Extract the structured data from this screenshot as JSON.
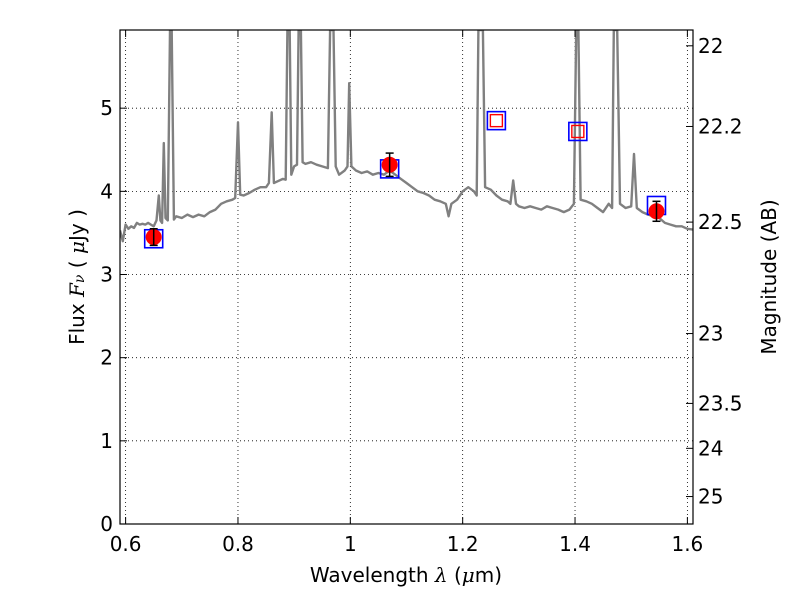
{
  "chart_data": {
    "type": "line",
    "xlabel_text": "Wavelength",
    "xlabel_symbol": "λ",
    "xlabel_unit_open": " (",
    "xlabel_unit_mu": "μ",
    "xlabel_unit_rest": "m)",
    "ylabel_text": "Flux",
    "ylabel_symbol": "F",
    "ylabel_subscript": "ν",
    "ylabel_unit_open": " ( ",
    "ylabel_unit_mu": "μ",
    "ylabel_unit_rest": "Jy )",
    "y2label": "Magnitude (AB)",
    "xlim": [
      0.59,
      1.61
    ],
    "ylim": [
      0,
      5.94
    ],
    "grid": true,
    "x_ticks": [
      0.6,
      0.8,
      1.0,
      1.2,
      1.4,
      1.6
    ],
    "x_tick_labels": [
      "0.6",
      "0.8",
      "1",
      "1.2",
      "1.4",
      "1.6"
    ],
    "y_ticks": [
      0,
      1,
      2,
      3,
      4,
      5
    ],
    "y_tick_labels": [
      "0",
      "1",
      "2",
      "3",
      "4",
      "5"
    ],
    "y2_ticks": [
      {
        "label": "22",
        "flux": 5.75
      },
      {
        "label": "22.2",
        "flux": 4.78
      },
      {
        "label": "22.5",
        "flux": 3.63
      },
      {
        "label": "23",
        "flux": 2.29
      },
      {
        "label": "23.5",
        "flux": 1.45
      },
      {
        "label": "24",
        "flux": 0.91
      },
      {
        "label": "25",
        "flux": 0.33
      }
    ],
    "series": [
      {
        "style": "model",
        "color": "#808080",
        "points": [
          [
            0.59,
            3.53
          ],
          [
            0.595,
            3.4
          ],
          [
            0.6,
            3.6
          ],
          [
            0.605,
            3.55
          ],
          [
            0.61,
            3.58
          ],
          [
            0.615,
            3.56
          ],
          [
            0.62,
            3.62
          ],
          [
            0.625,
            3.6
          ],
          [
            0.63,
            3.61
          ],
          [
            0.635,
            3.6
          ],
          [
            0.64,
            3.62
          ],
          [
            0.645,
            3.6
          ],
          [
            0.65,
            3.58
          ],
          [
            0.655,
            3.65
          ],
          [
            0.659,
            3.95
          ],
          [
            0.662,
            3.65
          ],
          [
            0.665,
            3.62
          ],
          [
            0.668,
            4.58
          ],
          [
            0.671,
            3.68
          ],
          [
            0.675,
            3.65
          ],
          [
            0.679,
            5.94
          ],
          [
            0.682,
            5.94
          ],
          [
            0.686,
            3.66
          ],
          [
            0.69,
            3.7
          ],
          [
            0.7,
            3.68
          ],
          [
            0.71,
            3.72
          ],
          [
            0.72,
            3.69
          ],
          [
            0.73,
            3.72
          ],
          [
            0.74,
            3.7
          ],
          [
            0.75,
            3.75
          ],
          [
            0.76,
            3.78
          ],
          [
            0.77,
            3.85
          ],
          [
            0.78,
            3.88
          ],
          [
            0.79,
            3.9
          ],
          [
            0.795,
            3.92
          ],
          [
            0.8,
            4.83
          ],
          [
            0.804,
            3.96
          ],
          [
            0.81,
            3.95
          ],
          [
            0.82,
            3.98
          ],
          [
            0.83,
            4.02
          ],
          [
            0.84,
            4.05
          ],
          [
            0.85,
            4.05
          ],
          [
            0.855,
            4.1
          ],
          [
            0.86,
            4.95
          ],
          [
            0.864,
            4.1
          ],
          [
            0.87,
            4.12
          ],
          [
            0.88,
            4.15
          ],
          [
            0.885,
            4.14
          ],
          [
            0.888,
            5.94
          ],
          [
            0.892,
            5.94
          ],
          [
            0.895,
            4.2
          ],
          [
            0.9,
            4.3
          ],
          [
            0.905,
            4.32
          ],
          [
            0.908,
            5.94
          ],
          [
            0.912,
            5.94
          ],
          [
            0.915,
            4.35
          ],
          [
            0.92,
            4.33
          ],
          [
            0.93,
            4.35
          ],
          [
            0.94,
            4.32
          ],
          [
            0.95,
            4.3
          ],
          [
            0.96,
            4.28
          ],
          [
            0.964,
            5.94
          ],
          [
            0.97,
            5.94
          ],
          [
            0.974,
            4.3
          ],
          [
            0.98,
            4.2
          ],
          [
            0.99,
            4.25
          ],
          [
            0.995,
            4.3
          ],
          [
            0.998,
            5.3
          ],
          [
            1.002,
            4.3
          ],
          [
            1.01,
            4.25
          ],
          [
            1.02,
            4.22
          ],
          [
            1.03,
            4.24
          ],
          [
            1.04,
            4.2
          ],
          [
            1.05,
            4.22
          ],
          [
            1.06,
            4.2
          ],
          [
            1.07,
            4.25
          ],
          [
            1.08,
            4.2
          ],
          [
            1.09,
            4.15
          ],
          [
            1.1,
            4.1
          ],
          [
            1.11,
            4.05
          ],
          [
            1.12,
            4.0
          ],
          [
            1.13,
            3.98
          ],
          [
            1.14,
            3.95
          ],
          [
            1.15,
            3.9
          ],
          [
            1.16,
            3.88
          ],
          [
            1.17,
            3.85
          ],
          [
            1.175,
            3.7
          ],
          [
            1.18,
            3.85
          ],
          [
            1.19,
            3.9
          ],
          [
            1.2,
            4.0
          ],
          [
            1.21,
            4.05
          ],
          [
            1.22,
            4.0
          ],
          [
            1.225,
            3.95
          ],
          [
            1.228,
            5.94
          ],
          [
            1.236,
            5.94
          ],
          [
            1.24,
            4.05
          ],
          [
            1.25,
            4.02
          ],
          [
            1.26,
            3.95
          ],
          [
            1.27,
            3.9
          ],
          [
            1.28,
            3.88
          ],
          [
            1.285,
            3.85
          ],
          [
            1.29,
            4.13
          ],
          [
            1.295,
            3.85
          ],
          [
            1.3,
            3.82
          ],
          [
            1.31,
            3.8
          ],
          [
            1.32,
            3.82
          ],
          [
            1.33,
            3.8
          ],
          [
            1.34,
            3.78
          ],
          [
            1.35,
            3.82
          ],
          [
            1.36,
            3.8
          ],
          [
            1.37,
            3.78
          ],
          [
            1.38,
            3.75
          ],
          [
            1.39,
            3.78
          ],
          [
            1.398,
            3.85
          ],
          [
            1.402,
            5.94
          ],
          [
            1.406,
            5.94
          ],
          [
            1.41,
            3.9
          ],
          [
            1.42,
            3.88
          ],
          [
            1.43,
            3.85
          ],
          [
            1.44,
            3.8
          ],
          [
            1.45,
            3.75
          ],
          [
            1.46,
            3.85
          ],
          [
            1.466,
            3.8
          ],
          [
            1.469,
            5.94
          ],
          [
            1.475,
            5.94
          ],
          [
            1.48,
            3.85
          ],
          [
            1.49,
            3.8
          ],
          [
            1.5,
            3.82
          ],
          [
            1.505,
            4.45
          ],
          [
            1.51,
            3.8
          ],
          [
            1.52,
            3.75
          ],
          [
            1.53,
            3.72
          ],
          [
            1.54,
            3.7
          ],
          [
            1.55,
            3.68
          ],
          [
            1.56,
            3.62
          ],
          [
            1.57,
            3.6
          ],
          [
            1.58,
            3.58
          ],
          [
            1.59,
            3.58
          ],
          [
            1.6,
            3.55
          ],
          [
            1.61,
            3.54
          ]
        ]
      },
      {
        "style": "model-squares",
        "color": "#0000ff",
        "x": [
          0.65,
          1.07,
          1.26,
          1.405,
          1.545
        ],
        "y": [
          3.43,
          4.27,
          4.85,
          4.72,
          3.83
        ]
      },
      {
        "style": "synthetic-squares",
        "color": "#ff0000",
        "x": [
          1.26,
          1.405
        ],
        "y": [
          4.85,
          4.72
        ]
      },
      {
        "style": "observed",
        "color": "#ff0000",
        "x": [
          0.65,
          1.07,
          1.545
        ],
        "y": [
          3.45,
          4.32,
          3.76
        ],
        "yerr": [
          0.1,
          0.14,
          0.12
        ]
      }
    ]
  }
}
